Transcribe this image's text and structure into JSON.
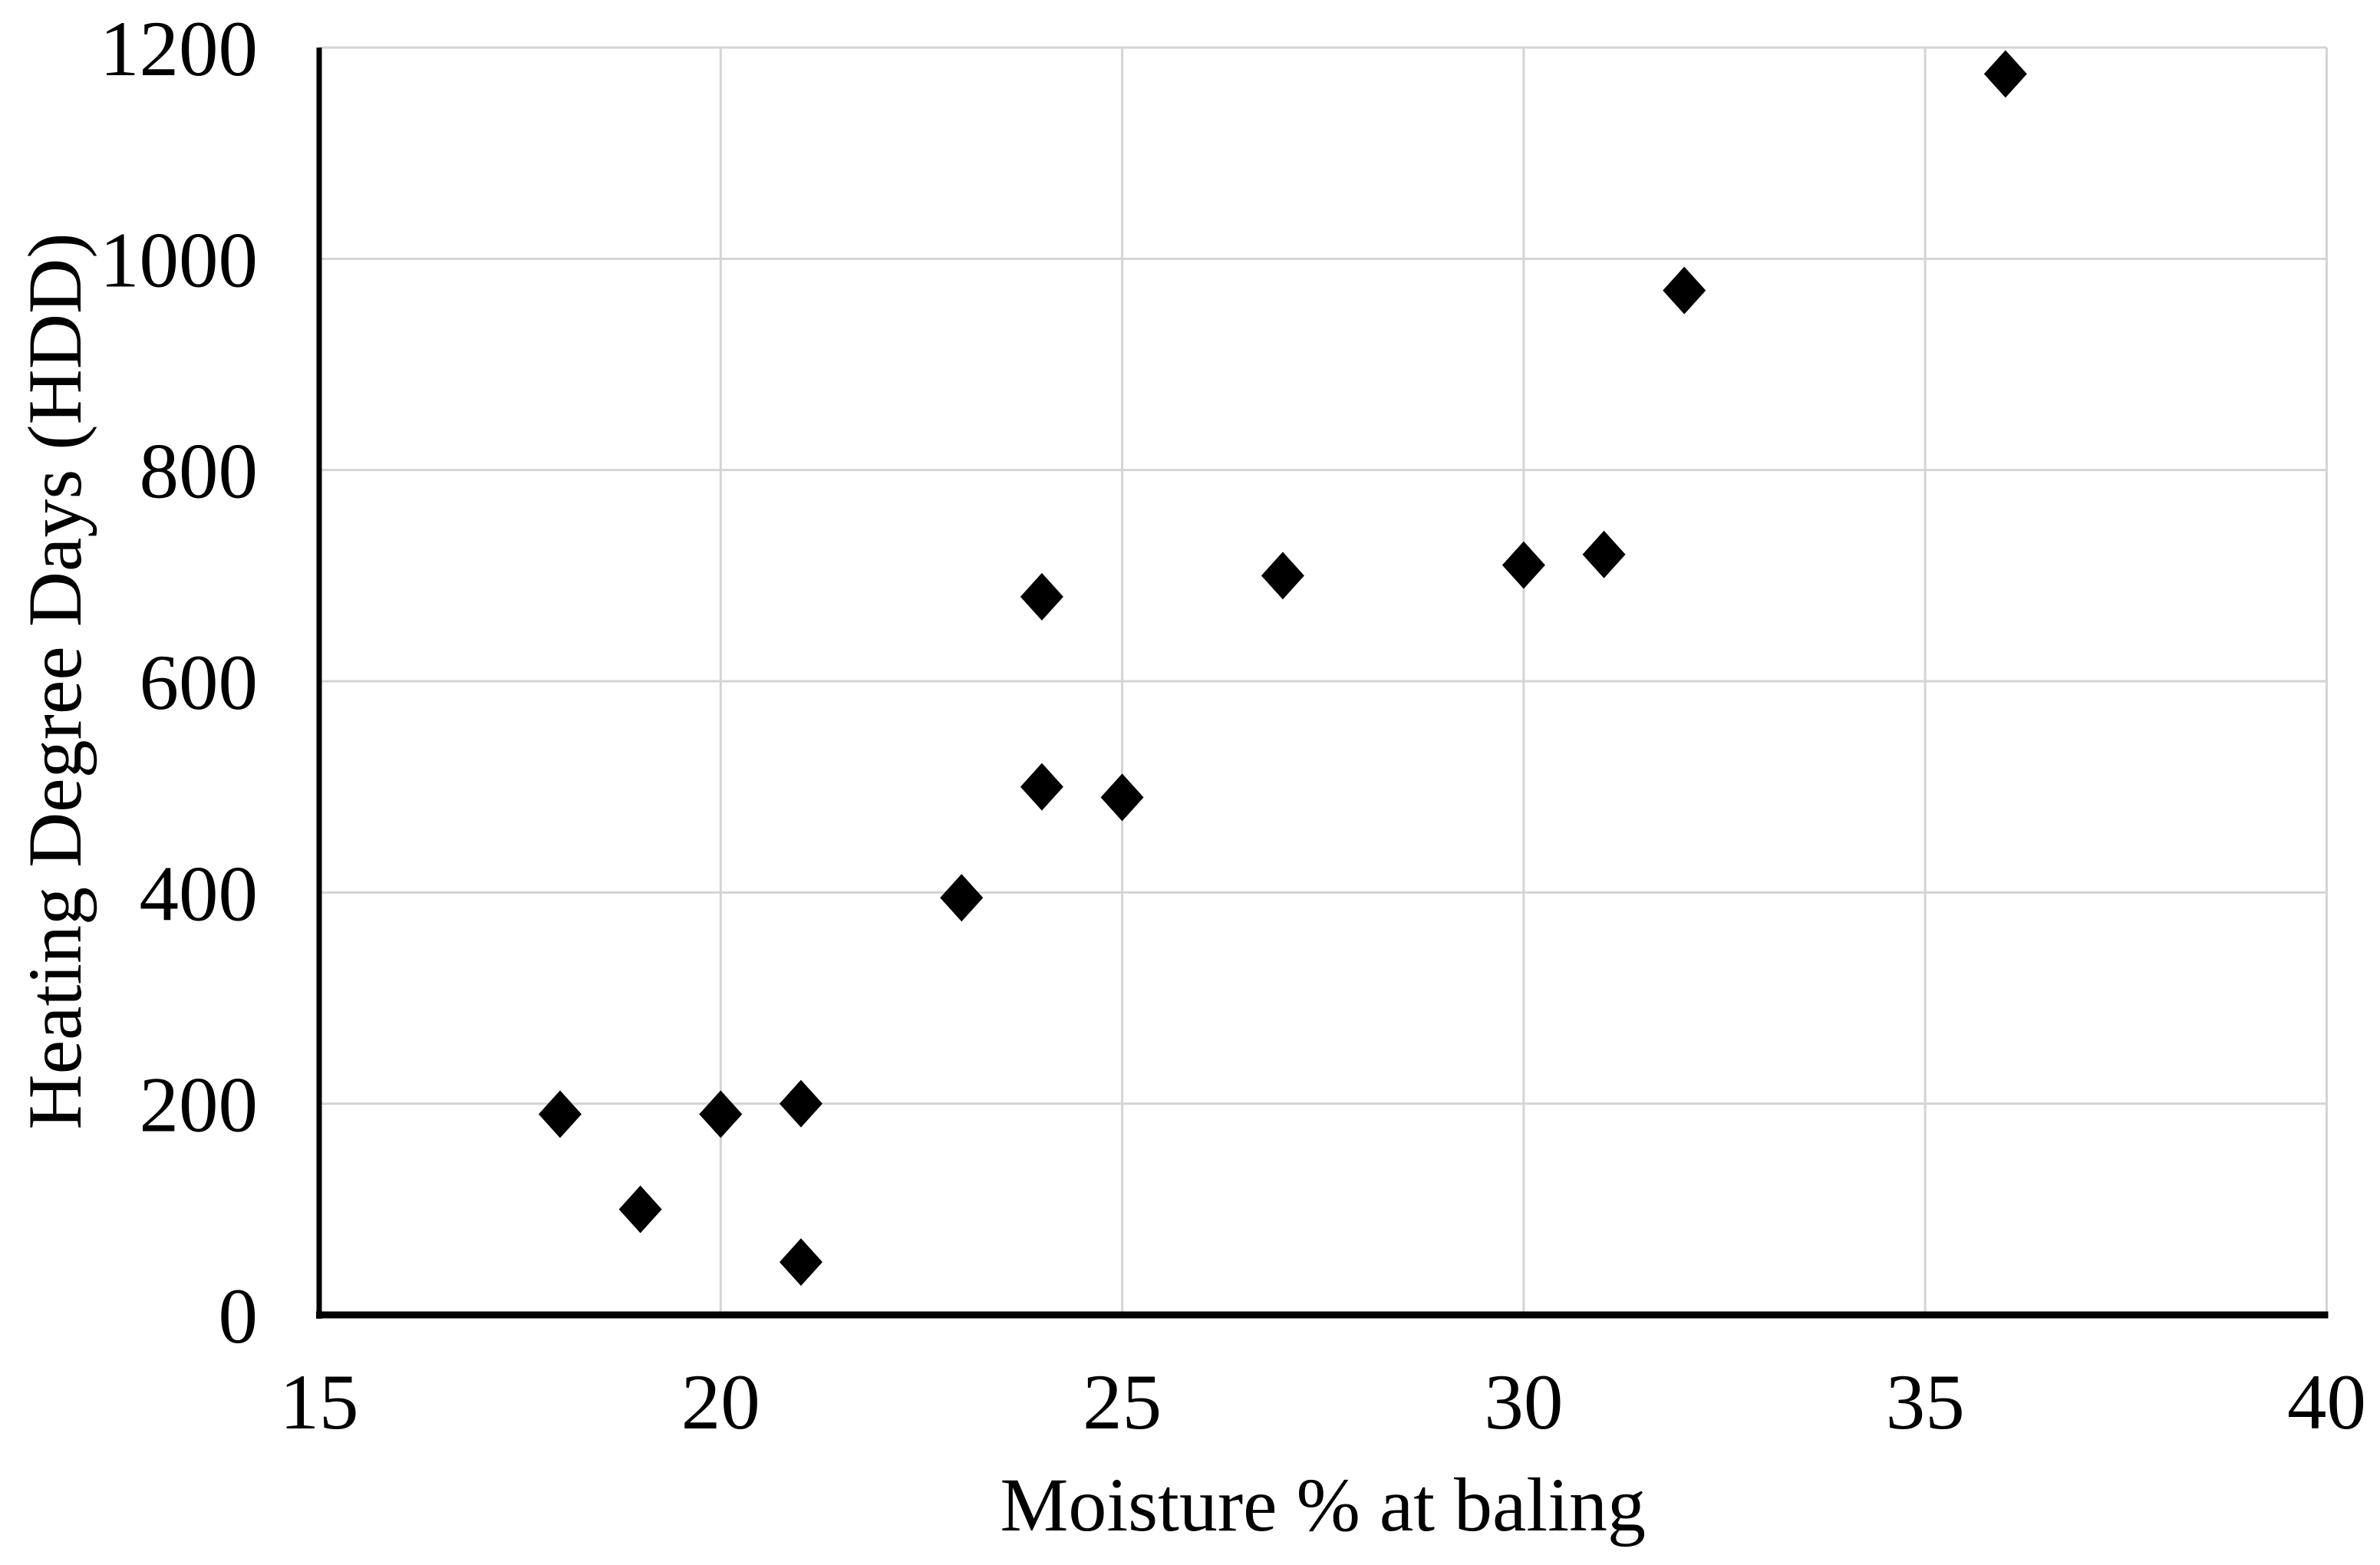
{
  "chart_data": {
    "type": "scatter",
    "title": "",
    "xlabel": "Moisture % at baling",
    "ylabel": "Heating Degree Days (HDD)",
    "xlim": [
      15,
      40
    ],
    "ylim": [
      0,
      1200
    ],
    "x_ticks": [
      15,
      20,
      25,
      30,
      35,
      40
    ],
    "y_ticks": [
      0,
      200,
      400,
      600,
      800,
      1000,
      1200
    ],
    "grid": true,
    "legend": false,
    "marker": "diamond",
    "marker_color": "#000000",
    "gridline_color": "#d4d4d4",
    "axis_color": "#000000",
    "points": [
      {
        "x": 18,
        "y": 190
      },
      {
        "x": 19,
        "y": 100
      },
      {
        "x": 20,
        "y": 190
      },
      {
        "x": 21,
        "y": 50
      },
      {
        "x": 21,
        "y": 200
      },
      {
        "x": 23,
        "y": 395
      },
      {
        "x": 24,
        "y": 500
      },
      {
        "x": 24,
        "y": 680
      },
      {
        "x": 25,
        "y": 490
      },
      {
        "x": 27,
        "y": 700
      },
      {
        "x": 30,
        "y": 710
      },
      {
        "x": 31,
        "y": 720
      },
      {
        "x": 32,
        "y": 970
      },
      {
        "x": 36,
        "y": 1175
      }
    ]
  }
}
